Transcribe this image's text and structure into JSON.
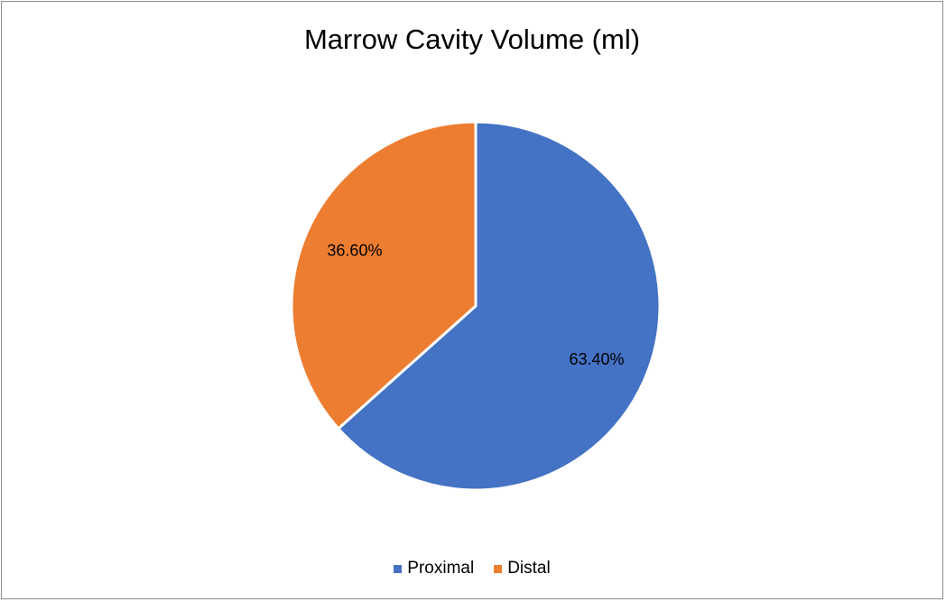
{
  "chart_data": {
    "type": "pie",
    "title": "Marrow Cavity Volume (ml)",
    "slices": [
      {
        "label": "Proximal",
        "value": 63.4,
        "data_label": "63.40%",
        "color": "#4472C4"
      },
      {
        "label": "Distal",
        "value": 36.6,
        "data_label": "36.60%",
        "color": "#ED7D31"
      }
    ],
    "legend_position": "bottom",
    "start_angle": "12 o'clock, clockwise"
  }
}
